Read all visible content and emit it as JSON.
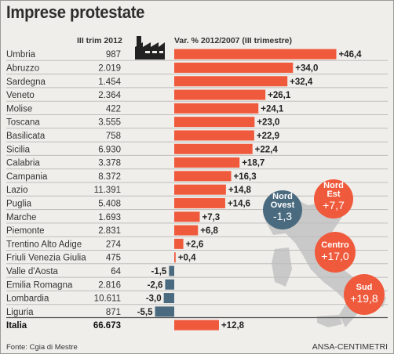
{
  "title": "Imprese protestate",
  "header": {
    "count_label": "III trim 2012",
    "var_label": "Var. % 2012/2007 (III trimestre)"
  },
  "footer": {
    "source": "Fonte: Cgia di Mestre",
    "agency": "ANSA-CENTIMETRI"
  },
  "colors": {
    "positive": "#f05a3c",
    "negative": "#4a6b7f",
    "row_line": "#bdbdbd",
    "map": "#c9c9c9"
  },
  "chart_data": {
    "type": "bar",
    "regions": [
      {
        "name": "Umbria",
        "count": "987",
        "value": 46.4,
        "label": "+46,4"
      },
      {
        "name": "Abruzzo",
        "count": "2.019",
        "value": 34.0,
        "label": "+34,0"
      },
      {
        "name": "Sardegna",
        "count": "1.454",
        "value": 32.4,
        "label": "+32,4"
      },
      {
        "name": "Veneto",
        "count": "2.364",
        "value": 26.1,
        "label": "+26,1"
      },
      {
        "name": "Molise",
        "count": "422",
        "value": 24.1,
        "label": "+24,1"
      },
      {
        "name": "Toscana",
        "count": "3.555",
        "value": 23.0,
        "label": "+23,0"
      },
      {
        "name": "Basilicata",
        "count": "758",
        "value": 22.9,
        "label": "+22,9"
      },
      {
        "name": "Sicilia",
        "count": "6.930",
        "value": 22.4,
        "label": "+22,4"
      },
      {
        "name": "Calabria",
        "count": "3.378",
        "value": 18.7,
        "label": "+18,7"
      },
      {
        "name": "Campania",
        "count": "8.372",
        "value": 16.3,
        "label": "+16,3"
      },
      {
        "name": "Lazio",
        "count": "11.391",
        "value": 14.8,
        "label": "+14,8"
      },
      {
        "name": "Puglia",
        "count": "5.408",
        "value": 14.6,
        "label": "+14,6"
      },
      {
        "name": "Marche",
        "count": "1.693",
        "value": 7.3,
        "label": "+7,3"
      },
      {
        "name": "Piemonte",
        "count": "2.831",
        "value": 6.8,
        "label": "+6,8"
      },
      {
        "name": "Trentino Alto Adige",
        "count": "274",
        "value": 2.6,
        "label": "+2,6"
      },
      {
        "name": "Friuli Venezia Giulia",
        "count": "475",
        "value": 0.4,
        "label": "+0,4"
      },
      {
        "name": "Valle d'Aosta",
        "count": "64",
        "value": -1.5,
        "label": "-1,5"
      },
      {
        "name": "Emilia Romagna",
        "count": "2.816",
        "value": -2.6,
        "label": "-2,6"
      },
      {
        "name": "Lombardia",
        "count": "10.611",
        "value": -3.0,
        "label": "-3,0"
      },
      {
        "name": "Liguria",
        "count": "871",
        "value": -5.5,
        "label": "-5,5"
      }
    ],
    "total": {
      "name": "Italia",
      "count": "66.673",
      "value": 12.8,
      "label": "+12,8"
    },
    "macro_areas": [
      {
        "name_lines": [
          "Nord",
          "Ovest"
        ],
        "label": "-1,3",
        "color": "#4a6b7f"
      },
      {
        "name_lines": [
          "Nord",
          "Est"
        ],
        "label": "+7,7",
        "color": "#f05a3c"
      },
      {
        "name_lines": [
          "Centro"
        ],
        "label": "+17,0",
        "color": "#f05a3c"
      },
      {
        "name_lines": [
          "Sud"
        ],
        "label": "+19,8",
        "color": "#f05a3c"
      }
    ]
  }
}
